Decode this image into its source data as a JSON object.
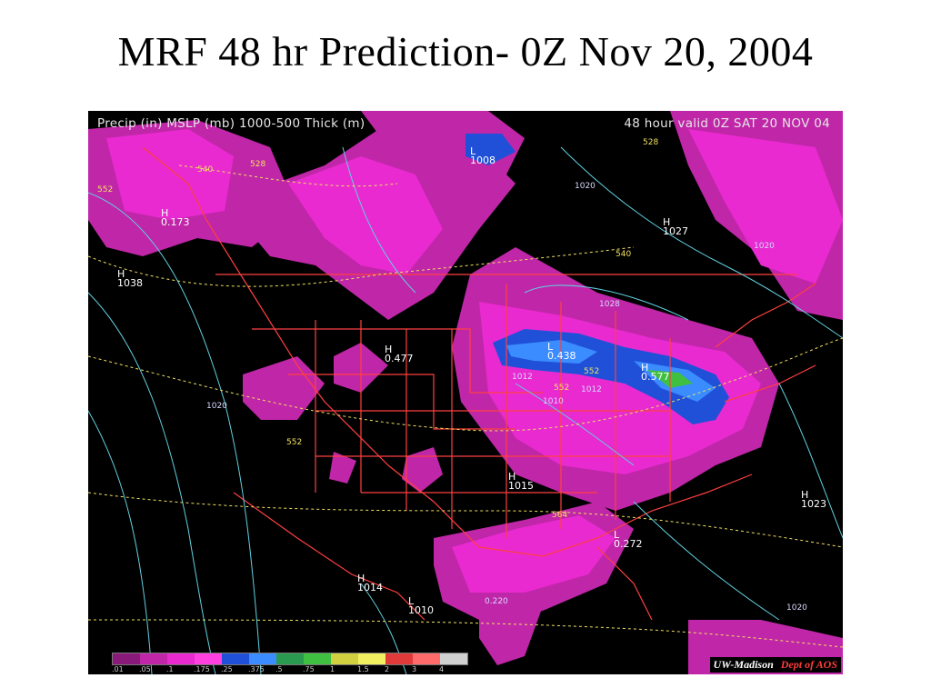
{
  "title": "MRF 48 hr Prediction- 0Z Nov 20, 2004",
  "map": {
    "header_left": "Precip (in) MSLP (mb) 1000-500 Thick (m)",
    "header_right": "48 hour  valid 0Z SAT 20 NOV 04",
    "credit_uw": "UW-Madison",
    "credit_dept": "Dept of AOS",
    "colors": {
      "background": "#000000",
      "precip_light": "#c026a8",
      "precip_med": "#e82ad0",
      "precip_heavy": "#2050d8",
      "precip_heavier": "#3a8cff",
      "precip_max": "#40c040",
      "borders": "#ff4040",
      "isobars": "#60d0e0",
      "thickness": "#f0e060"
    },
    "colorbar": {
      "labels": [
        ".01",
        ".05",
        ".1",
        ".175",
        ".25",
        ".375",
        ".5",
        ".75",
        "1",
        "1.5",
        "2",
        "3",
        "4"
      ],
      "colors": [
        "#8a1a7a",
        "#c026a8",
        "#e82ad0",
        "#ff40e0",
        "#2050d8",
        "#3a8cff",
        "#2a9a50",
        "#40c040",
        "#d0d040",
        "#f0f060",
        "#e03a3a",
        "#ff6a6a",
        "#d0d0d0"
      ]
    },
    "labels": [
      {
        "text": "H",
        "sub": "0.173"
      },
      {
        "text": "H",
        "sub": "1038"
      },
      {
        "text": "L",
        "sub": "1008"
      },
      {
        "text": "H",
        "sub": "1027"
      },
      {
        "text": "1020",
        "sub": ""
      },
      {
        "text": "1020",
        "sub": ""
      },
      {
        "text": "H",
        "sub": "0.477"
      },
      {
        "text": "L",
        "sub": "0.438"
      },
      {
        "text": "H",
        "sub": "0.577"
      },
      {
        "text": "H",
        "sub": "1015"
      },
      {
        "text": "H",
        "sub": "1023"
      },
      {
        "text": "L",
        "sub": "0.272"
      },
      {
        "text": "H",
        "sub": "1014"
      },
      {
        "text": "L",
        "sub": "1010"
      },
      {
        "text": "1020",
        "sub": ""
      },
      {
        "text": "0.220",
        "sub": ""
      },
      {
        "text": "1010",
        "sub": ""
      },
      {
        "text": "1012",
        "sub": ""
      },
      {
        "text": "1012",
        "sub": ""
      },
      {
        "text": "1028",
        "sub": ""
      },
      {
        "text": "1020",
        "sub": ""
      }
    ],
    "thickness_labels": [
      "552",
      "540",
      "528",
      "540",
      "528",
      "552",
      "552",
      "564",
      "552"
    ]
  }
}
